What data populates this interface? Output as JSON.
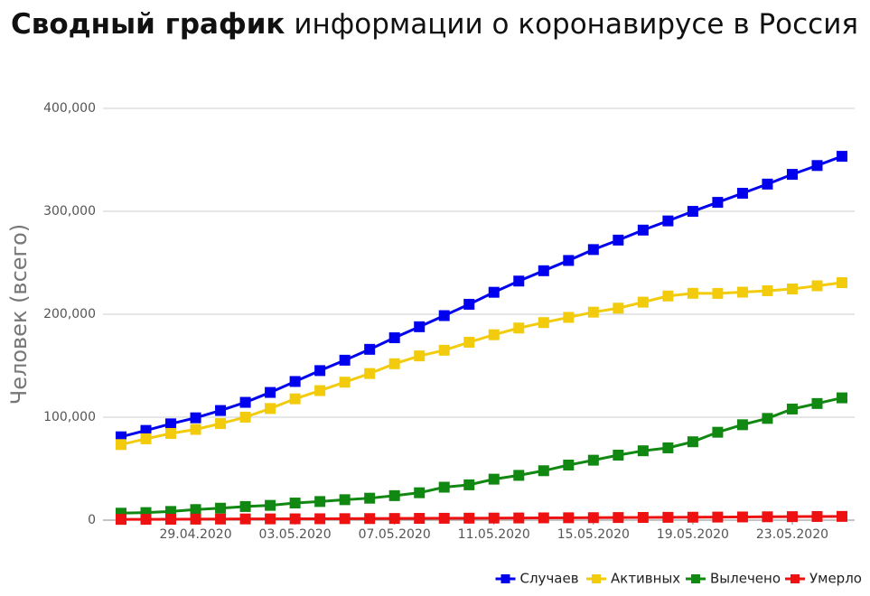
{
  "chart_data": {
    "type": "line",
    "title_bold": "Сводный график",
    "title": "информации о коронавирусе в Россия",
    "y_label": "Человек (всего)",
    "categories": [
      null,
      null,
      null,
      "29.04.2020",
      null,
      null,
      null,
      "03.05.2020",
      null,
      null,
      null,
      "07.05.2020",
      null,
      null,
      null,
      "11.05.2020",
      null,
      null,
      null,
      "15.05.2020",
      null,
      null,
      null,
      "19.05.2020",
      null,
      null,
      null,
      "23.05.2020",
      null,
      null
    ],
    "ylim": [
      0,
      400000
    ],
    "yticks": [
      0,
      {
        "value": 100000,
        "label": "100,000"
      },
      {
        "value": 200000,
        "label": "200,000"
      },
      {
        "value": 300000,
        "label": "300,000"
      },
      {
        "value": 400000,
        "label": "400,000"
      }
    ],
    "grid": true,
    "legend": "bottom-right",
    "series": [
      {
        "name": "Случаев",
        "color": "#0000ee",
        "values": [
          80949,
          87147,
          93558,
          99399,
          106498,
          114431,
          124054,
          134686,
          145268,
          155370,
          165929,
          177160,
          187859,
          198676,
          209688,
          221344,
          232243,
          242271,
          252245,
          262843,
          272043,
          281752,
          290678,
          299941,
          308705,
          317554,
          326448,
          335882,
          344481,
          353427
        ]
      },
      {
        "name": "Активных",
        "color": "#f2cc0c",
        "values": [
          73435,
          79007,
          84235,
          88141,
          93806,
          100042,
          108439,
          117839,
          125817,
          134054,
          142421,
          151915,
          159528,
          165045,
          172808,
          180103,
          186615,
          191918,
          196959,
          202031,
          205931,
          211748,
          217747,
          220341,
          220248,
          221454,
          222847,
          224551,
          227641,
          230688
        ]
      },
      {
        "name": "Вылечено",
        "color": "#118811",
        "values": [
          6767,
          7346,
          8456,
          10286,
          11619,
          13220,
          14349,
          16639,
          18095,
          19865,
          21327,
          23803,
          26608,
          32008,
          34306,
          39801,
          43512,
          48003,
          53530,
          58226,
          63166,
          67373,
          70209,
          76130,
          85392,
          92681,
          98825,
          107936,
          113299,
          118798
        ]
      },
      {
        "name": "Умерло",
        "color": "#ee1111",
        "values": [
          747,
          794,
          867,
          972,
          1073,
          1169,
          1222,
          1280,
          1356,
          1451,
          1537,
          1625,
          1723,
          1827,
          1915,
          2009,
          2116,
          2212,
          2305,
          2418,
          2537,
          2631,
          2722,
          2837,
          2972,
          3099,
          3249,
          3388,
          3541,
          3633
        ]
      }
    ]
  }
}
